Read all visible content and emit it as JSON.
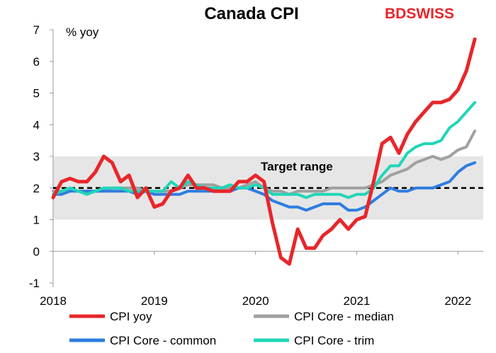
{
  "brand": {
    "part1": "BD",
    "part2": "SWISS",
    "color": "#e8262b"
  },
  "chart_data": {
    "type": "line",
    "title": "Canada CPI",
    "ylabel": "% yoy",
    "xlabel": "",
    "ylim": [
      -1,
      7
    ],
    "yticks": [
      -1,
      0,
      1,
      2,
      3,
      4,
      5,
      6,
      7
    ],
    "xlim": [
      2018.0,
      2022.25
    ],
    "xticks": [
      2018,
      2019,
      2020,
      2021,
      2022
    ],
    "target_band": {
      "low": 1,
      "high": 3,
      "color": "#e6e6e6"
    },
    "target_line": {
      "value": 2
    },
    "annotation": "Target range",
    "grid": false,
    "legend_position": "bottom",
    "series": [
      {
        "name": "CPI yoy",
        "color": "#e8262b",
        "values": [
          1.7,
          2.2,
          2.3,
          2.2,
          2.2,
          2.5,
          3.0,
          2.8,
          2.2,
          2.4,
          1.7,
          2.0,
          1.4,
          1.5,
          1.9,
          2.0,
          2.4,
          2.0,
          2.0,
          1.9,
          1.9,
          1.9,
          2.2,
          2.2,
          2.4,
          2.2,
          0.9,
          -0.2,
          -0.4,
          0.7,
          0.1,
          0.1,
          0.5,
          0.7,
          1.0,
          0.7,
          1.0,
          1.1,
          2.2,
          3.4,
          3.6,
          3.1,
          3.7,
          4.1,
          4.4,
          4.7,
          4.7,
          4.8,
          5.1,
          5.7,
          6.7
        ]
      },
      {
        "name": "CPI Core - median",
        "color": "#a0a0a0",
        "values": [
          1.9,
          1.9,
          2.0,
          1.9,
          1.9,
          1.9,
          1.9,
          2.0,
          2.0,
          2.0,
          2.0,
          1.9,
          1.9,
          1.9,
          1.9,
          2.0,
          2.1,
          2.1,
          2.1,
          2.1,
          2.0,
          2.0,
          2.0,
          2.1,
          2.2,
          2.0,
          1.9,
          1.9,
          1.8,
          1.9,
          1.9,
          1.9,
          1.9,
          2.0,
          2.0,
          2.0,
          2.0,
          2.0,
          2.1,
          2.2,
          2.4,
          2.5,
          2.6,
          2.8,
          2.9,
          3.0,
          2.9,
          3.0,
          3.2,
          3.3,
          3.8
        ]
      },
      {
        "name": "CPI Core - common",
        "color": "#2e7de0",
        "values": [
          1.8,
          1.8,
          1.9,
          1.9,
          1.9,
          1.9,
          1.9,
          1.9,
          1.9,
          1.9,
          1.8,
          1.9,
          1.8,
          1.8,
          1.8,
          1.8,
          1.9,
          1.9,
          1.9,
          1.9,
          1.9,
          1.9,
          2.0,
          2.0,
          1.9,
          1.8,
          1.6,
          1.5,
          1.4,
          1.4,
          1.3,
          1.4,
          1.5,
          1.5,
          1.5,
          1.3,
          1.3,
          1.4,
          1.6,
          1.8,
          2.0,
          1.9,
          1.9,
          2.0,
          2.0,
          2.0,
          2.1,
          2.2,
          2.5,
          2.7,
          2.8
        ]
      },
      {
        "name": "CPI Core - trim",
        "color": "#20d6b8",
        "values": [
          1.8,
          1.9,
          2.0,
          1.9,
          1.8,
          1.9,
          2.0,
          2.0,
          2.0,
          1.9,
          1.9,
          1.9,
          1.9,
          1.9,
          2.2,
          2.0,
          2.2,
          2.1,
          2.0,
          2.0,
          2.0,
          2.1,
          2.0,
          2.0,
          2.1,
          2.0,
          1.8,
          1.8,
          1.8,
          1.8,
          1.7,
          1.8,
          1.8,
          1.8,
          1.8,
          1.7,
          1.8,
          1.8,
          2.0,
          2.4,
          2.7,
          2.7,
          3.1,
          3.3,
          3.4,
          3.4,
          3.5,
          3.9,
          4.1,
          4.4,
          4.7
        ]
      }
    ]
  }
}
